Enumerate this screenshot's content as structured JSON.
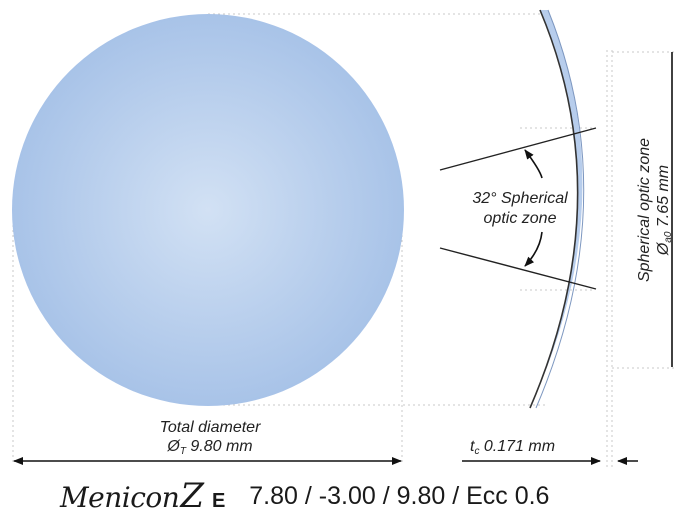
{
  "total_diameter": {
    "title": "Total diameter",
    "symbol": "Ø",
    "subscript": "T",
    "value": "9.80 mm"
  },
  "optic_angle_label": {
    "line1": "32° Spherical",
    "line2": "optic zone"
  },
  "spherical_optic_zone": {
    "title": "Spherical optic zone",
    "symbol": "Ø",
    "subscript": "a0",
    "value": "7.65 mm"
  },
  "center_thickness": {
    "symbol": "t",
    "subscript": "c",
    "value": "0.171 mm"
  },
  "product": {
    "brand_logo": "Menicon",
    "brand_z": "Z",
    "brand_e": "E",
    "spec": "7.80 / -3.00 / 9.80 / Ecc 0.6"
  },
  "colors": {
    "lens_fill_center": "#d2e1f4",
    "lens_fill_edge": "#a9c4e8",
    "lens_profile": "#b7cdec"
  }
}
